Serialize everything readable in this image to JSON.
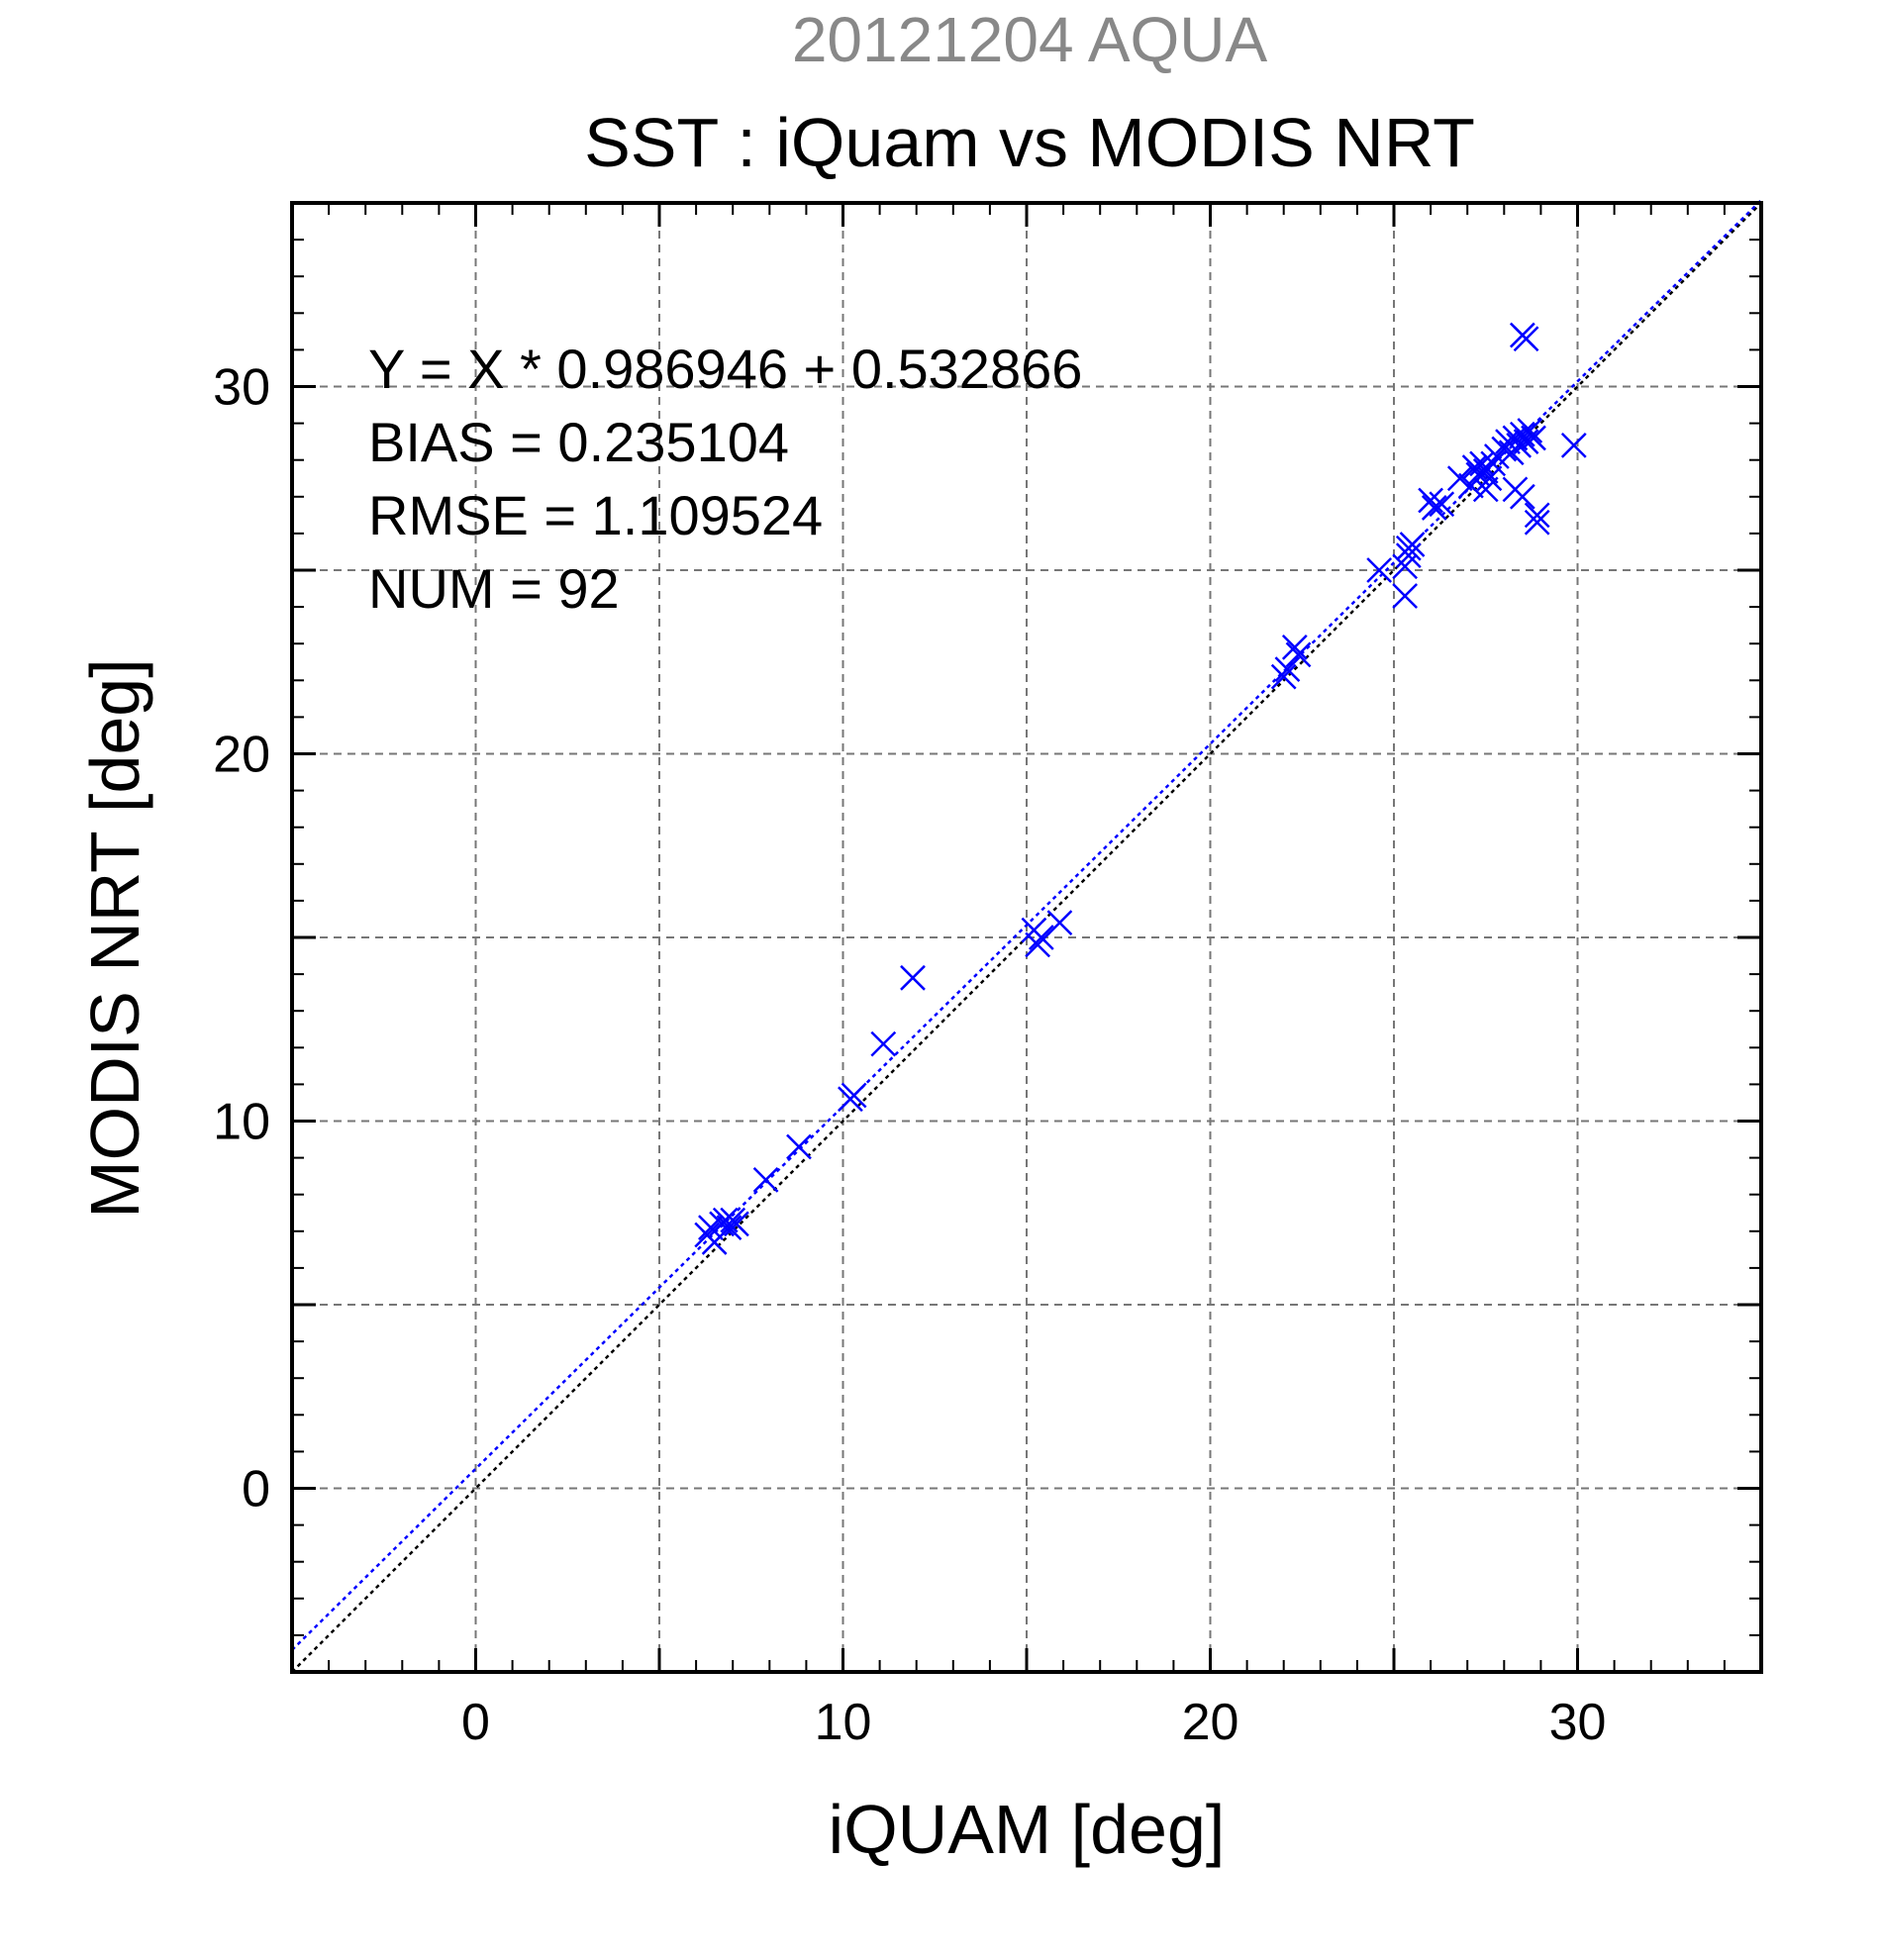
{
  "header": {
    "date_title": "20121204 AQUA",
    "main_title": "SST : iQuam vs MODIS NRT"
  },
  "colors": {
    "points": "#0000ff",
    "fit_line": "#0000ff",
    "identity_line": "#000000",
    "grid": "#777777",
    "date_title": "#888888",
    "text": "#000000"
  },
  "stats": {
    "equation": "Y = X * 0.986946 + 0.532866",
    "bias": "BIAS = 0.235104",
    "rmse": "RMSE = 1.109524",
    "num": "NUM = 92"
  },
  "chart_data": {
    "type": "scatter",
    "title": "SST : iQuam vs MODIS NRT",
    "subtitle": "20121204 AQUA",
    "xlabel": "iQUAM [deg]",
    "ylabel": "MODIS NRT [deg]",
    "xlim": [
      -5,
      35
    ],
    "ylim": [
      -5,
      35
    ],
    "x_ticks": [
      0,
      10,
      20,
      30
    ],
    "y_ticks": [
      0,
      10,
      20,
      30
    ],
    "x_tick_labels": [
      "0",
      "10",
      "20",
      "30"
    ],
    "y_tick_labels": [
      "0",
      "10",
      "20",
      "30"
    ],
    "grid": true,
    "grid_step": 5,
    "minor_tick_step": 1,
    "marker": "x",
    "fit": {
      "slope": 0.986946,
      "intercept": 0.532866
    },
    "identity_line": true,
    "x": [
      6.3,
      6.4,
      6.5,
      6.7,
      6.8,
      6.9,
      7.0,
      7.1,
      7.9,
      8.8,
      10.2,
      10.3,
      11.1,
      11.9,
      15.2,
      15.3,
      15.4,
      15.9,
      22.0,
      22.1,
      22.3,
      22.4,
      24.6,
      25.3,
      25.3,
      25.4,
      25.5,
      25.4,
      26.0,
      26.1,
      26.3,
      26.8,
      27.1,
      27.2,
      27.3,
      27.4,
      27.5,
      27.6,
      27.7,
      27.5,
      27.8,
      28.0,
      28.1,
      28.2,
      28.3,
      28.4,
      28.5,
      28.6,
      28.7,
      28.8,
      28.6,
      28.5,
      28.3,
      28.5,
      28.9,
      28.9,
      29.9
    ],
    "y": [
      6.9,
      7.1,
      6.7,
      7.2,
      7.3,
      7.1,
      7.3,
      7.2,
      8.4,
      9.3,
      10.6,
      10.7,
      12.1,
      13.9,
      15.2,
      14.8,
      15.0,
      15.4,
      22.1,
      22.3,
      22.9,
      22.7,
      25.0,
      24.3,
      25.1,
      25.6,
      25.7,
      25.4,
      26.9,
      26.7,
      26.8,
      27.5,
      27.3,
      27.8,
      27.6,
      27.9,
      27.7,
      27.5,
      27.9,
      27.2,
      28.1,
      28.3,
      28.5,
      28.2,
      28.6,
      28.4,
      28.7,
      28.5,
      28.8,
      28.6,
      31.3,
      31.4,
      27.2,
      27.0,
      26.3,
      26.5,
      28.4
    ]
  }
}
